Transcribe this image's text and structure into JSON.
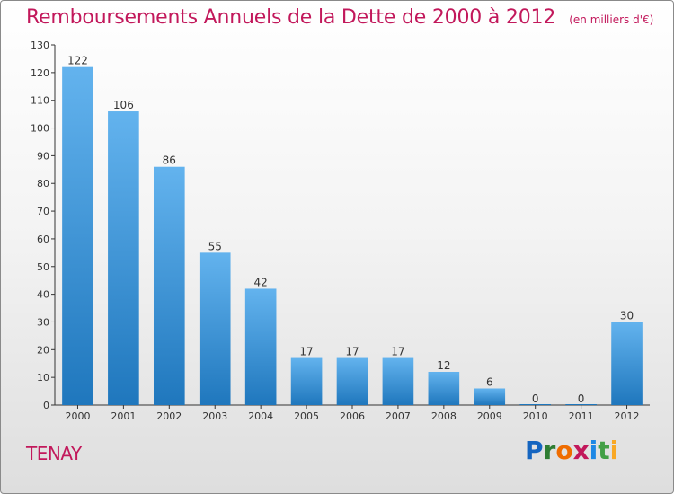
{
  "header": {
    "title": "Remboursements Annuels de la Dette de 2000 à 2012",
    "subtitle": "(en milliers d'€)"
  },
  "footer": {
    "place": "TENAY",
    "logo_text": "Proxiti"
  },
  "colors": {
    "title": "#c2185b",
    "bar_light": "#63b3ee",
    "bar_dark": "#1f77bd",
    "axis": "#333333"
  },
  "chart_data": {
    "type": "bar",
    "title": "Remboursements Annuels de la Dette de 2000 à 2012",
    "subtitle": "(en milliers d'€)",
    "xlabel": "",
    "ylabel": "",
    "categories": [
      "2000",
      "2001",
      "2002",
      "2003",
      "2004",
      "2005",
      "2006",
      "2007",
      "2008",
      "2009",
      "2010",
      "2011",
      "2012"
    ],
    "values": [
      122,
      106,
      86,
      55,
      42,
      17,
      17,
      17,
      12,
      6,
      0,
      0,
      30
    ],
    "data_labels": [
      "122",
      "106",
      "86",
      "55",
      "42",
      "17",
      "17",
      "17",
      "12",
      "6",
      "0",
      "0",
      "30"
    ],
    "ylim": [
      0,
      130
    ],
    "yticks": [
      0,
      10,
      20,
      30,
      40,
      50,
      60,
      70,
      80,
      90,
      100,
      110,
      120,
      130
    ],
    "grid": false,
    "legend": "none"
  }
}
